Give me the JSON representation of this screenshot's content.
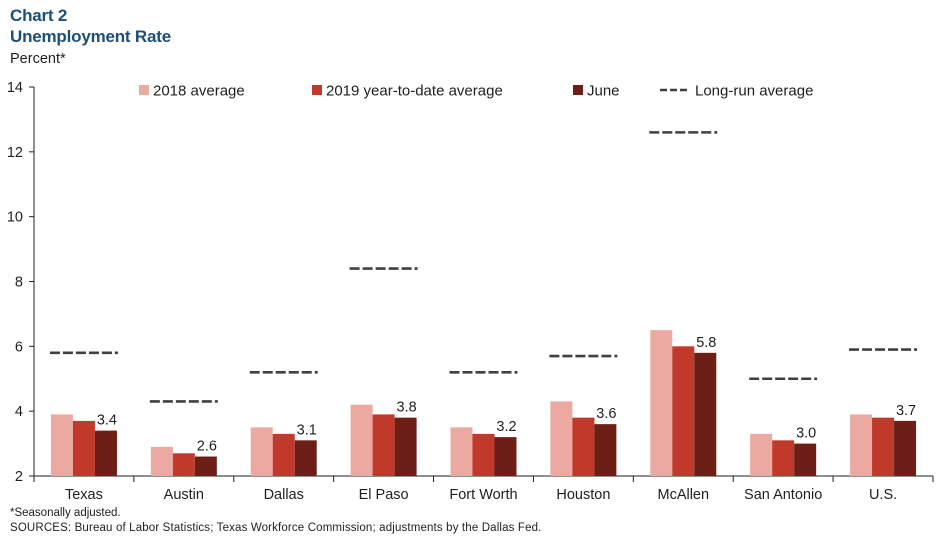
{
  "chart_data": {
    "type": "bar",
    "title": "Chart 2",
    "subtitle": "Unemployment Rate",
    "ylabel": "Percent*",
    "xlabel": "",
    "ylim": [
      2,
      14
    ],
    "yticks": [
      "2",
      "4",
      "6",
      "8",
      "10",
      "12",
      "14"
    ],
    "categories": [
      "Texas",
      "Austin",
      "Dallas",
      "El Paso",
      "Fort Worth",
      "Houston",
      "McAllen",
      "San Antonio",
      "U.S."
    ],
    "series": [
      {
        "name": "2018 average",
        "color": "#eba9a1",
        "values": [
          3.9,
          2.9,
          3.5,
          4.2,
          3.5,
          4.3,
          6.5,
          3.3,
          3.9
        ]
      },
      {
        "name": "2019 year-to-date average",
        "color": "#c0392b",
        "values": [
          3.7,
          2.7,
          3.3,
          3.9,
          3.3,
          3.8,
          6.0,
          3.1,
          3.8
        ]
      },
      {
        "name": "June",
        "color": "#6d1f17",
        "values": [
          3.4,
          2.6,
          3.1,
          3.8,
          3.2,
          3.6,
          5.8,
          3.0,
          3.7
        ]
      }
    ],
    "data_labels": [
      "3.4",
      "2.6",
      "3.1",
      "3.8",
      "3.2",
      "3.6",
      "5.8",
      "3.0",
      "3.7"
    ],
    "reference": {
      "name": "Long-run average",
      "color": "#404040",
      "style": "dashed",
      "values": [
        5.8,
        4.3,
        5.2,
        8.4,
        5.2,
        5.7,
        12.6,
        5.0,
        5.9
      ]
    },
    "grid": false,
    "legend_position": "top"
  },
  "footnotes": {
    "note": "*Seasonally adjusted.",
    "sources": "SOURCES: Bureau of Labor Statistics; Texas Workforce Commission; adjustments by the Dallas Fed."
  }
}
